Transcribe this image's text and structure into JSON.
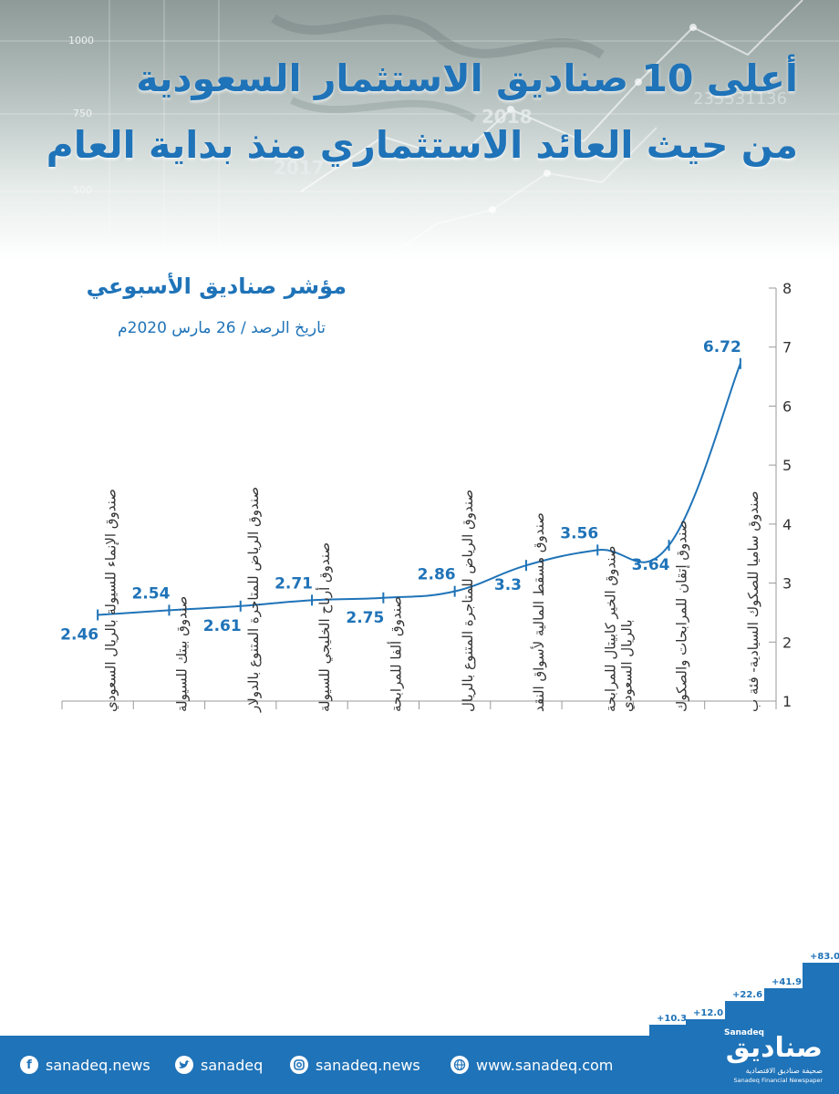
{
  "header": {
    "title_line1": "أعلى 10 صناديق الاستثمار السعودية",
    "title_line2": "من حيث العائد الاستثماري منذ بداية العام",
    "background_texts": [
      "1000",
      "750",
      "500",
      "2018",
      "2017",
      "235531136"
    ]
  },
  "chart_data": {
    "type": "line",
    "title": "مؤشر صناديق الأسبوعي",
    "subtitle": "تاريخ الرصد / 26 مارس 2020م",
    "categories": [
      [
        "صندوق الإنماء للسيولة بالريال السعودي"
      ],
      [
        "صندوق بيتك للسيولة"
      ],
      [
        "صندوق الرياض للمتاجرة المتنوع بالدولار"
      ],
      [
        "صندوق أرباح الخليجي للسيولة"
      ],
      [
        "صندوق ألفا للمرابحة"
      ],
      [
        "صندوق الرياض للمتاجرة المتنوع بالريال"
      ],
      [
        "صندوق مسقط المالية لأسواق النقد"
      ],
      [
        "صندوق الخير كابيتال للمرابحة",
        "بالريال السعودي"
      ],
      [
        "صندوق إتقان للمرابحات والصكوك"
      ],
      [
        "صندوق ساميا للصكوك السيادية- فئة ب"
      ]
    ],
    "values": [
      2.46,
      2.54,
      2.61,
      2.71,
      2.75,
      2.86,
      3.3,
      3.56,
      3.64,
      6.72
    ],
    "value_label_positions": [
      "below",
      "above",
      "below",
      "above",
      "below",
      "above",
      "below",
      "above",
      "below",
      "above"
    ],
    "ylim": [
      1,
      8
    ],
    "yticks": [
      1,
      2,
      3,
      4,
      5,
      6,
      7,
      8
    ],
    "y_axis_side": "right",
    "grid": false,
    "line_color": "#1f73b8"
  },
  "stairs": {
    "labels": [
      "+10.3",
      "+12.0",
      "+22.6",
      "+41.9",
      "+83.0"
    ]
  },
  "footer": {
    "facebook": "sanadeq.news",
    "twitter": "sanadeq",
    "instagram": "sanadeq.news",
    "website": "www.sanadeq.com",
    "icons": {
      "facebook": "facebook-icon",
      "twitter": "twitter-icon",
      "instagram": "instagram-icon",
      "website": "globe-icon"
    }
  },
  "logo": {
    "latin": "Sanadeq",
    "arabic": "صناديق",
    "tagline_ar": "صحيفة صناديق الاقتصادية",
    "tagline_en": "Sanadeq Financial Newspaper"
  },
  "colors": {
    "accent": "#1f73b8",
    "footer": "#1f73b8",
    "text": "#333333"
  }
}
